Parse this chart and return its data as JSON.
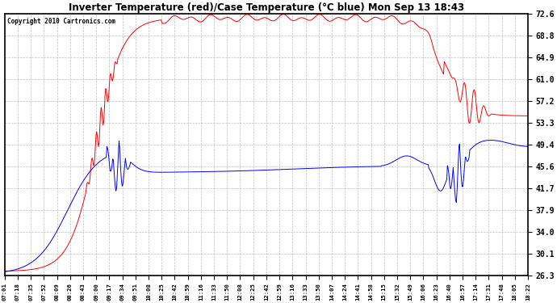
{
  "title": "Inverter Temperature (red)/Case Temperature (°C blue) Mon Sep 13 18:43",
  "copyright": "Copyright 2010 Cartronics.com",
  "background_color": "#ffffff",
  "plot_bg_color": "#ffffff",
  "grid_color": "#b0b0b0",
  "line_color_red": "red",
  "line_color_blue": "blue",
  "yticks": [
    26.3,
    30.1,
    34.0,
    37.9,
    41.7,
    45.6,
    49.4,
    53.3,
    57.2,
    61.0,
    64.9,
    68.8,
    72.6
  ],
  "xtick_labels": [
    "07:01",
    "07:18",
    "07:35",
    "07:52",
    "08:09",
    "08:26",
    "08:43",
    "09:00",
    "09:17",
    "09:34",
    "09:51",
    "10:08",
    "10:25",
    "10:42",
    "10:59",
    "11:16",
    "11:33",
    "11:50",
    "12:08",
    "12:25",
    "12:42",
    "12:59",
    "13:16",
    "13:33",
    "13:50",
    "14:07",
    "14:24",
    "14:41",
    "14:58",
    "15:15",
    "15:32",
    "15:49",
    "16:06",
    "16:23",
    "16:40",
    "16:57",
    "17:14",
    "17:31",
    "17:48",
    "18:05",
    "18:22"
  ],
  "ymin": 26.3,
  "ymax": 72.6
}
